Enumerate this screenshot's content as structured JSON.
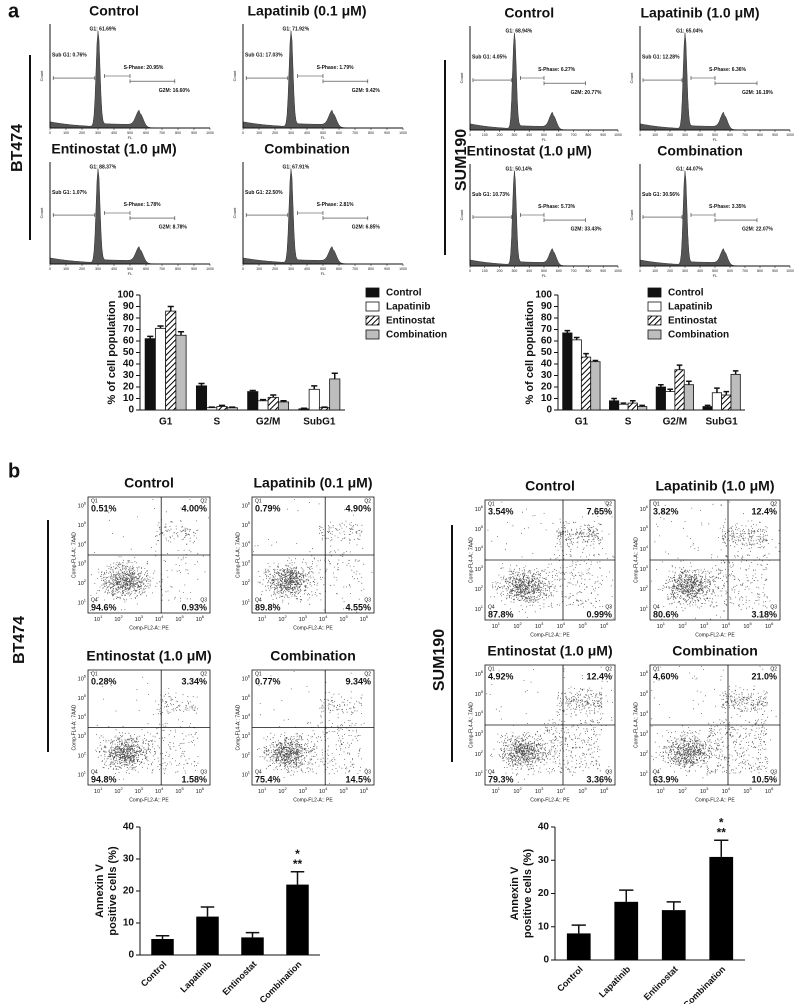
{
  "figure": {
    "panel_a": {
      "label": "a",
      "histogram_axes": {
        "y_label": "Count",
        "x_label": "FL",
        "xticks": [
          0,
          100,
          200,
          300,
          400,
          500,
          600,
          700,
          800,
          900,
          1000
        ]
      },
      "groups": [
        {
          "cell_line": "BT474",
          "plots": [
            {
              "title": "Control",
              "g1": "G1: 61.69%",
              "sub_g1": "Sub G1: 0.76%",
              "s_phase": "S-Phase: 20.95%",
              "g2m": "G2M: 16.60%"
            },
            {
              "title": "Lapatinib (0.1 μM)",
              "g1": "G1: 71.92%",
              "sub_g1": "Sub G1: 17.03%",
              "s_phase": "S-Phase: 1.79%",
              "g2m": "G2M: 9.42%"
            },
            {
              "title": "Entinostat (1.0 μM)",
              "g1": "G1: 88.37%",
              "sub_g1": "Sub G1: 1.07%",
              "s_phase": "S-Phase: 1.78%",
              "g2m": "G2M: 8.78%"
            },
            {
              "title": "Combination",
              "g1": "G1: 67.91%",
              "sub_g1": "Sub G1: 22.50%",
              "s_phase": "S-Phase: 2.81%",
              "g2m": "G2M: 6.85%"
            }
          ]
        },
        {
          "cell_line": "SUM190",
          "plots": [
            {
              "title": "Control",
              "g1": "G1: 68.94%",
              "sub_g1": "Sub G1: 4.05%",
              "s_phase": "S-Phase: 6.27%",
              "g2m": "G2M: 20.77%"
            },
            {
              "title": "Lapatinib (1.0 μM)",
              "g1": "G1: 65.04%",
              "sub_g1": "Sub G1: 12.28%",
              "s_phase": "S-Phase: 6.36%",
              "g2m": "G2M: 16.19%"
            },
            {
              "title": "Entinostat (1.0 μM)",
              "g1": "G1: 50.14%",
              "sub_g1": "Sub G1: 10.73%",
              "s_phase": "S-Phase: 5.73%",
              "g2m": "G2M: 33.43%"
            },
            {
              "title": "Combination",
              "g1": "G1: 44.07%",
              "sub_g1": "Sub G1: 30.56%",
              "s_phase": "S-Phase: 3.35%",
              "g2m": "G2M: 22.07%"
            }
          ]
        }
      ]
    },
    "panel_b": {
      "label": "b",
      "flow_axes": {
        "x_label": "Comp-FL2-A:: PE",
        "y_label": "Comp-FL4-A:: 7AAD",
        "tick_base": "10",
        "tick_exponents": [
          "1",
          "2",
          "3",
          "4",
          "5",
          "6"
        ],
        "quadrant_names": [
          "Q1",
          "Q2",
          "Q3",
          "Q4"
        ]
      },
      "groups": [
        {
          "cell_line": "BT474",
          "plots": [
            {
              "title": "Control",
              "quadrants": [
                "0.51%",
                "4.00%",
                "0.93%",
                "94.6%"
              ]
            },
            {
              "title": "Lapatinib (0.1 μM)",
              "quadrants": [
                "0.79%",
                "4.90%",
                "4.55%",
                "89.8%"
              ]
            },
            {
              "title": "Entinostat (1.0 μM)",
              "quadrants": [
                "0.28%",
                "3.34%",
                "1.58%",
                "94.8%"
              ]
            },
            {
              "title": "Combination",
              "quadrants": [
                "0.77%",
                "9.34%",
                "14.5%",
                "75.4%"
              ]
            }
          ]
        },
        {
          "cell_line": "SUM190",
          "plots": [
            {
              "title": "Control",
              "quadrants": [
                "3.54%",
                "7.65%",
                "0.99%",
                "87.8%"
              ]
            },
            {
              "title": "Lapatinib (1.0 μM)",
              "quadrants": [
                "3.82%",
                "12.4%",
                "3.18%",
                "80.6%"
              ]
            },
            {
              "title": "Entinostat (1.0 μM)",
              "quadrants": [
                "4.92%",
                "12.4%",
                "3.36%",
                "79.3%"
              ]
            },
            {
              "title": "Combination",
              "quadrants": [
                "4.60%",
                "21.0%",
                "10.5%",
                "63.9%"
              ]
            }
          ]
        }
      ]
    }
  },
  "chart_data": [
    {
      "type": "bar",
      "ylabel": "% of cell population",
      "categories": [
        "G1",
        "S",
        "G2/M",
        "SubG1"
      ],
      "series": [
        {
          "name": "Control",
          "color": "#111111",
          "values": [
            62,
            21,
            16,
            1
          ],
          "errors": [
            2,
            2,
            1,
            0.5
          ]
        },
        {
          "name": "Lapatinib",
          "color": "#ffffff",
          "values": [
            71,
            2,
            8,
            18
          ],
          "errors": [
            2,
            0.5,
            1,
            3
          ]
        },
        {
          "name": "Entinostat",
          "color": "#ffffff",
          "pattern": "hatch",
          "values": [
            86,
            3,
            11,
            2
          ],
          "errors": [
            4,
            1,
            2,
            0.5
          ]
        },
        {
          "name": "Combination",
          "color": "#bdbdbd",
          "values": [
            65,
            2,
            7,
            27
          ],
          "errors": [
            3,
            0.5,
            1,
            5
          ]
        }
      ],
      "ylim": [
        0,
        100
      ],
      "yticks": [
        0,
        10,
        20,
        30,
        40,
        50,
        60,
        70,
        80,
        90,
        100
      ],
      "legend": "right"
    },
    {
      "type": "bar",
      "ylabel": "% of cell population",
      "categories": [
        "G1",
        "S",
        "G2/M",
        "SubG1"
      ],
      "series": [
        {
          "name": "Control",
          "color": "#111111",
          "values": [
            67,
            8,
            20,
            3
          ],
          "errors": [
            2,
            2,
            2,
            1
          ]
        },
        {
          "name": "Lapatinib",
          "color": "#ffffff",
          "values": [
            61,
            5,
            16,
            15
          ],
          "errors": [
            2,
            1,
            2,
            4
          ]
        },
        {
          "name": "Entinostat",
          "color": "#ffffff",
          "pattern": "hatch",
          "values": [
            46,
            6,
            35,
            13
          ],
          "errors": [
            3,
            2,
            4,
            3
          ]
        },
        {
          "name": "Combination",
          "color": "#bdbdbd",
          "values": [
            42,
            3,
            22,
            31
          ],
          "errors": [
            1,
            1,
            3,
            3
          ]
        }
      ],
      "ylim": [
        0,
        100
      ],
      "yticks": [
        0,
        10,
        20,
        30,
        40,
        50,
        60,
        70,
        80,
        90,
        100
      ],
      "legend": "right"
    },
    {
      "type": "bar",
      "ylabel": [
        "Annexin V",
        "positive cells (%)"
      ],
      "categories": [
        "Control",
        "Lapatinib",
        "Entinostat",
        "Combination"
      ],
      "values": [
        5,
        12,
        5.5,
        22
      ],
      "errors": [
        1,
        3,
        1.5,
        4
      ],
      "color": "#000000",
      "ylim": [
        0,
        40
      ],
      "yticks": [
        0,
        10,
        20,
        30,
        40
      ],
      "annotations": [
        {
          "category": "Combination",
          "text": "**"
        },
        {
          "category": "Combination",
          "text": "*"
        }
      ]
    },
    {
      "type": "bar",
      "ylabel": [
        "Annexin V",
        "positive cells (%)"
      ],
      "categories": [
        "Control",
        "Lapatinib",
        "Entinostat",
        "Combination"
      ],
      "values": [
        8,
        17.5,
        15,
        31
      ],
      "errors": [
        2.5,
        3.5,
        2.5,
        5
      ],
      "color": "#000000",
      "ylim": [
        0,
        40
      ],
      "yticks": [
        0,
        10,
        20,
        30,
        40
      ],
      "annotations": [
        {
          "category": "Combination",
          "text": "**"
        },
        {
          "category": "Combination",
          "text": "*"
        }
      ]
    }
  ]
}
